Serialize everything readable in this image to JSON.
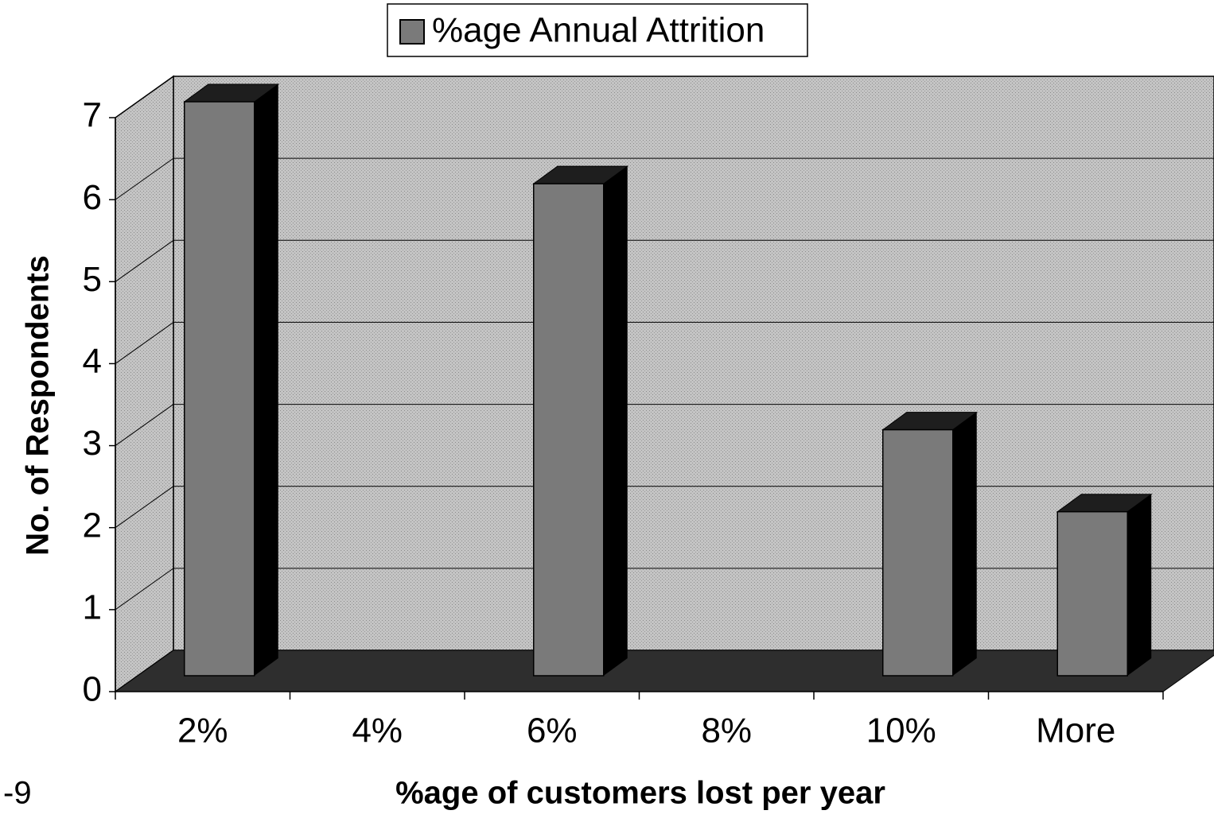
{
  "chart_data": {
    "type": "bar3d",
    "legend_label": "%age Annual Attrition",
    "x_label": "%age of customers lost per year",
    "y_label": "No. of Respondents",
    "annotation": "-9",
    "categories": [
      "2%",
      "4%",
      "6%",
      "8%",
      "10%",
      "More"
    ],
    "values": [
      7,
      0,
      6,
      0,
      3,
      2
    ],
    "color": "#7a7a7a",
    "ylim": [
      0,
      7
    ],
    "yticks": [
      0,
      1,
      2,
      3,
      4,
      5,
      6,
      7
    ],
    "grid": true,
    "legend": "top"
  }
}
